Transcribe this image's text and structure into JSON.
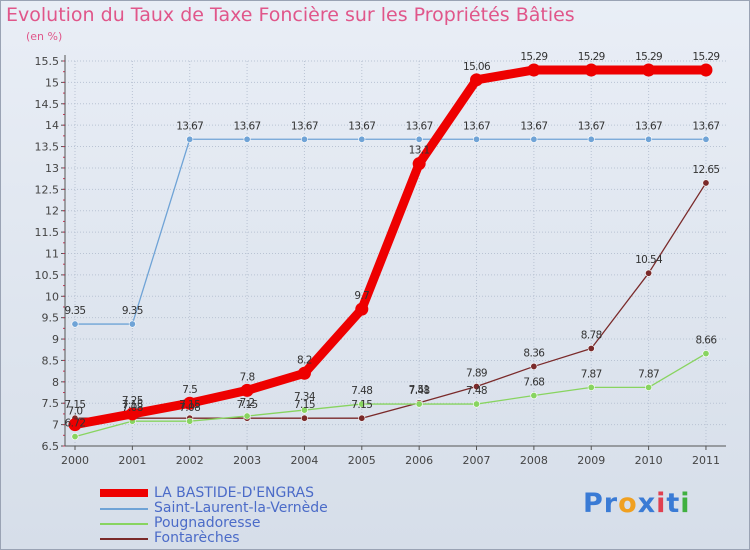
{
  "title": "Evolution du Taux de Taxe Foncière sur les Propriétés Bâties",
  "unit_label": "(en %)",
  "brand": {
    "name": "Proxiti",
    "letters": [
      "P",
      "r",
      "o",
      "x",
      "i",
      "t",
      "i"
    ],
    "colors": [
      "#3a7bd5",
      "#3a7bd5",
      "#f0a020",
      "#3a7bd5",
      "#e04050",
      "#3a7bd5",
      "#40b040"
    ]
  },
  "colors": {
    "title": "#e0568a",
    "axis": "#555555",
    "grid": "#b9c3d3",
    "label": "#444444"
  },
  "chart_data": {
    "type": "line",
    "title": "Evolution du Taux de Taxe Foncière sur les Propriétés Bâties",
    "ylabel": "(en %)",
    "xlabel": "",
    "ylim": [
      6.5,
      15.5
    ],
    "x": [
      "2000",
      "2001",
      "2002",
      "2003",
      "2004",
      "2005",
      "2006",
      "2007",
      "2008",
      "2009",
      "2010",
      "2011"
    ],
    "yticks": [
      "6.5",
      "7",
      "7.5",
      "8",
      "8.5",
      "9",
      "9.5",
      "10",
      "10.5",
      "11",
      "11.5",
      "12",
      "12.5",
      "13",
      "13.5",
      "14",
      "14.5",
      "15",
      "15.5"
    ],
    "series": [
      {
        "name": "LA BASTIDE-D'ENGRAS",
        "color": "#ee0000",
        "values": [
          7.0,
          7.25,
          7.5,
          7.8,
          8.2,
          9.7,
          13.1,
          15.06,
          15.29,
          15.29,
          15.29,
          15.29
        ],
        "labels": [
          "7.0",
          "7.25",
          "7.5",
          "7.8",
          "8.2",
          "9.7",
          "13.1",
          "15.06",
          "15.29",
          "15.29",
          "15.29",
          "15.29"
        ]
      },
      {
        "name": "Saint-Laurent-la-Vernède",
        "color": "#6fa3d6",
        "values": [
          9.35,
          9.35,
          13.67,
          13.67,
          13.67,
          13.67,
          13.67,
          13.67,
          13.67,
          13.67,
          13.67,
          13.67
        ],
        "labels": [
          "9.35",
          "9.35",
          "13.67",
          "13.67",
          "13.67",
          "13.67",
          "13.67",
          "13.67",
          "13.67",
          "13.67",
          "13.67",
          "13.67"
        ]
      },
      {
        "name": "Pougnadoresse",
        "color": "#88d460",
        "values": [
          6.72,
          7.08,
          7.08,
          7.2,
          7.34,
          7.48,
          7.48,
          7.48,
          7.68,
          7.87,
          7.87,
          8.66
        ],
        "labels": [
          "6.72",
          "7.08",
          "7.08",
          "7.2",
          "7.34",
          "7.48",
          "7.48",
          "7.48",
          "7.68",
          "7.87",
          "7.87",
          "8.66"
        ]
      },
      {
        "name": "Fontarèches",
        "color": "#7a2a2a",
        "values": [
          7.15,
          7.15,
          7.15,
          7.15,
          7.15,
          7.15,
          7.51,
          7.89,
          8.36,
          8.78,
          10.54,
          12.65
        ],
        "labels": [
          "7.15",
          "7.15",
          "7.15",
          "7.15",
          "7.15",
          "7.15",
          "7.51",
          "7.89",
          "8.36",
          "8.78",
          "10.54",
          "12.65"
        ]
      }
    ],
    "legend_position": "bottom-left"
  }
}
